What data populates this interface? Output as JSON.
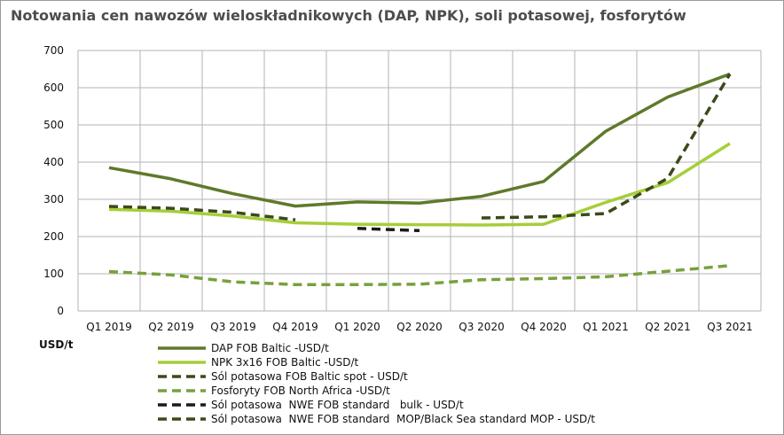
{
  "chart_data": {
    "type": "line",
    "title": "Notowania cen nawozów wieloskładnikowych (DAP, NPK), soli potasowej, fosforytów",
    "ylabel": "USD/t",
    "xlabel": "",
    "ylim": [
      0,
      700
    ],
    "yticks": [
      0,
      100,
      200,
      300,
      400,
      500,
      600,
      700
    ],
    "grid": true,
    "legend_position": "bottom",
    "categories": [
      "Q1 2019",
      "Q2 2019",
      "Q3 2019",
      "Q4 2019",
      "Q1 2020",
      "Q2 2020",
      "Q3 2020",
      "Q4 2020",
      "Q1 2021",
      "Q2 2021",
      "Q3 2021"
    ],
    "series": [
      {
        "name": "DAP FOB Baltic -USD/t",
        "color": "#5e7a2a",
        "style": "solid",
        "values": [
          385,
          355,
          315,
          282,
          293,
          290,
          308,
          348,
          483,
          575,
          637
        ]
      },
      {
        "name": "NPK 3x16 FOB Baltic -USD/t",
        "color": "#a6ce39",
        "style": "solid",
        "values": [
          273,
          268,
          255,
          237,
          233,
          232,
          231,
          233,
          292,
          345,
          450
        ]
      },
      {
        "name": "Sól potasowa FOB Baltic spot - USD/t",
        "color": "#3b4a1a",
        "style": "dashed",
        "values": [
          281,
          276,
          265,
          245,
          null,
          null,
          null,
          null,
          null,
          null,
          null
        ]
      },
      {
        "name": "Fosforyty FOB North Africa -USD/t",
        "color": "#77a13c",
        "style": "dashed",
        "values": [
          106,
          97,
          78,
          71,
          71,
          72,
          84,
          87,
          92,
          107,
          122
        ]
      },
      {
        "name": "Sól potasowa  NWE FOB standard   bulk - USD/t",
        "color": "#1a1a1a",
        "style": "dashed",
        "values": [
          null,
          null,
          null,
          null,
          222,
          216,
          null,
          null,
          null,
          null,
          null
        ]
      },
      {
        "name": "Sól potasowa  NWE FOB standard  MOP/Black Sea standard MOP - USD/t",
        "color": "#3b4a1a",
        "style": "dashed",
        "values": [
          null,
          null,
          null,
          null,
          null,
          null,
          250,
          253,
          262,
          357,
          637
        ]
      }
    ]
  }
}
